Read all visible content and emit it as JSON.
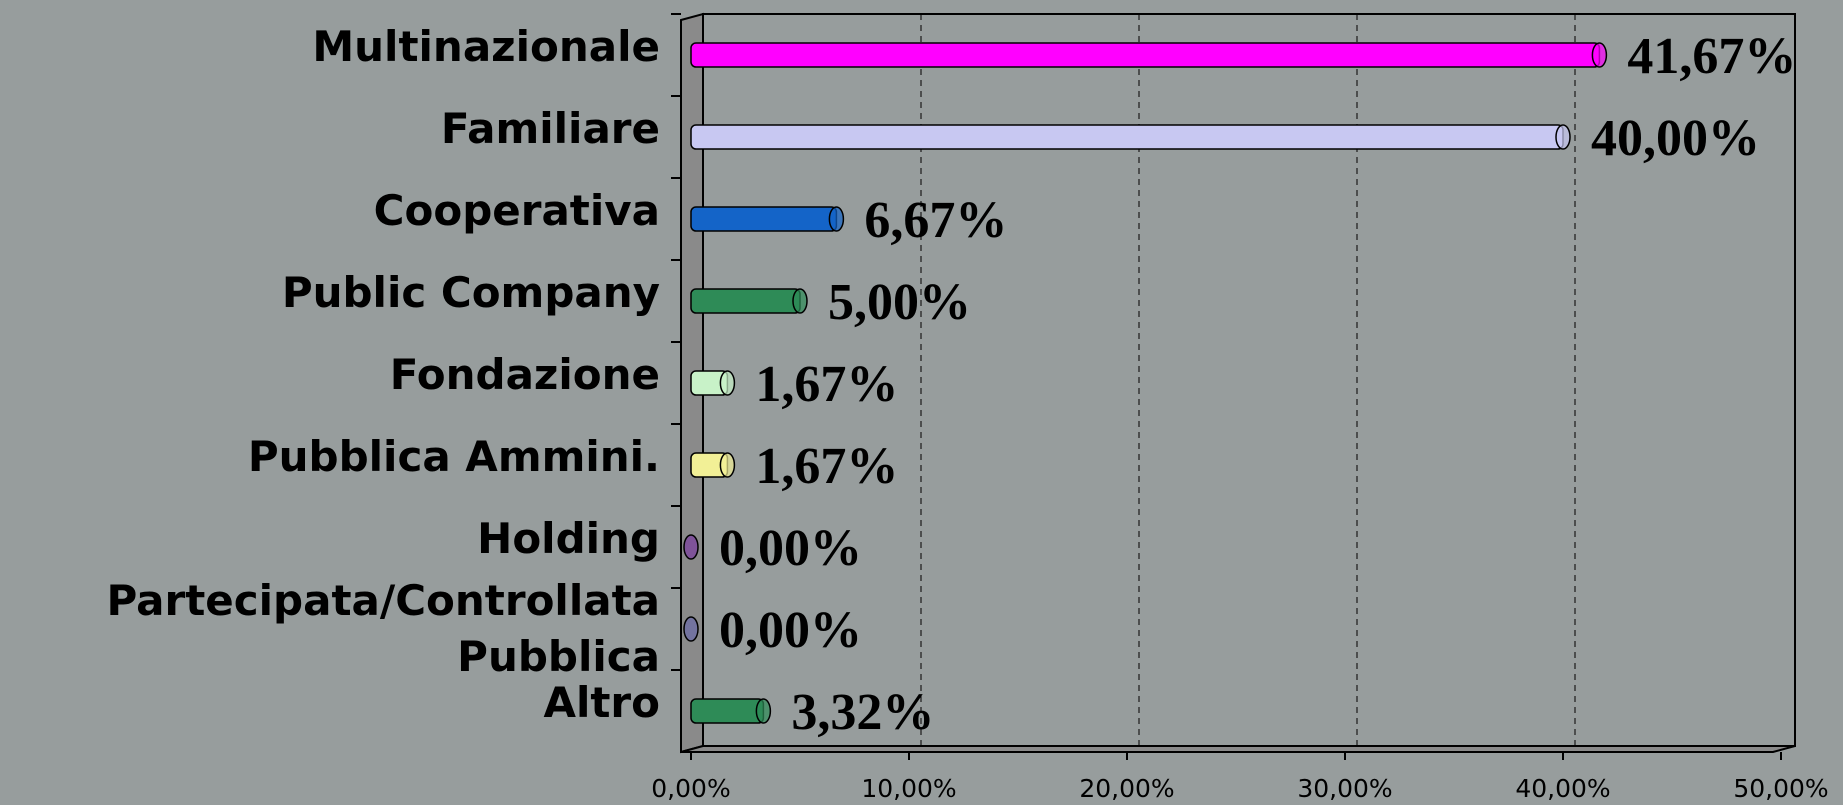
{
  "chart_data": {
    "type": "bar",
    "orientation": "horizontal",
    "categories": [
      "Multinazionale",
      "Familiare",
      "Cooperativa",
      "Public Company",
      "Fondazione",
      "Pubblica Ammini.",
      "Holding",
      "Partecipata/Controllata Pubblica",
      "Altro"
    ],
    "values": [
      41.67,
      40,
      6.67,
      5,
      1.67,
      1.67,
      0,
      0,
      3.32
    ],
    "value_labels": [
      "41,67%",
      "40,00%",
      "6,67%",
      "5,00%",
      "1,67%",
      "1,67%",
      "0,00%",
      "0,00%",
      "3,32%"
    ],
    "colors": [
      "#ff00ff",
      "#c8c8f2",
      "#1464c8",
      "#2e8b57",
      "#c8f2c8",
      "#f2f096",
      "#7a3ca0",
      "#6a6aa8",
      "#2e8b57"
    ],
    "xlim": [
      0,
      50
    ],
    "xticks": [
      {
        "value": 0,
        "label": "0,00%"
      },
      {
        "value": 10,
        "label": "10,00%"
      },
      {
        "value": 20,
        "label": "20,00%"
      },
      {
        "value": 30,
        "label": "30,00%"
      },
      {
        "value": 40,
        "label": "40,00%"
      },
      {
        "value": 50,
        "label": "50,00%"
      }
    ],
    "grid": true
  }
}
